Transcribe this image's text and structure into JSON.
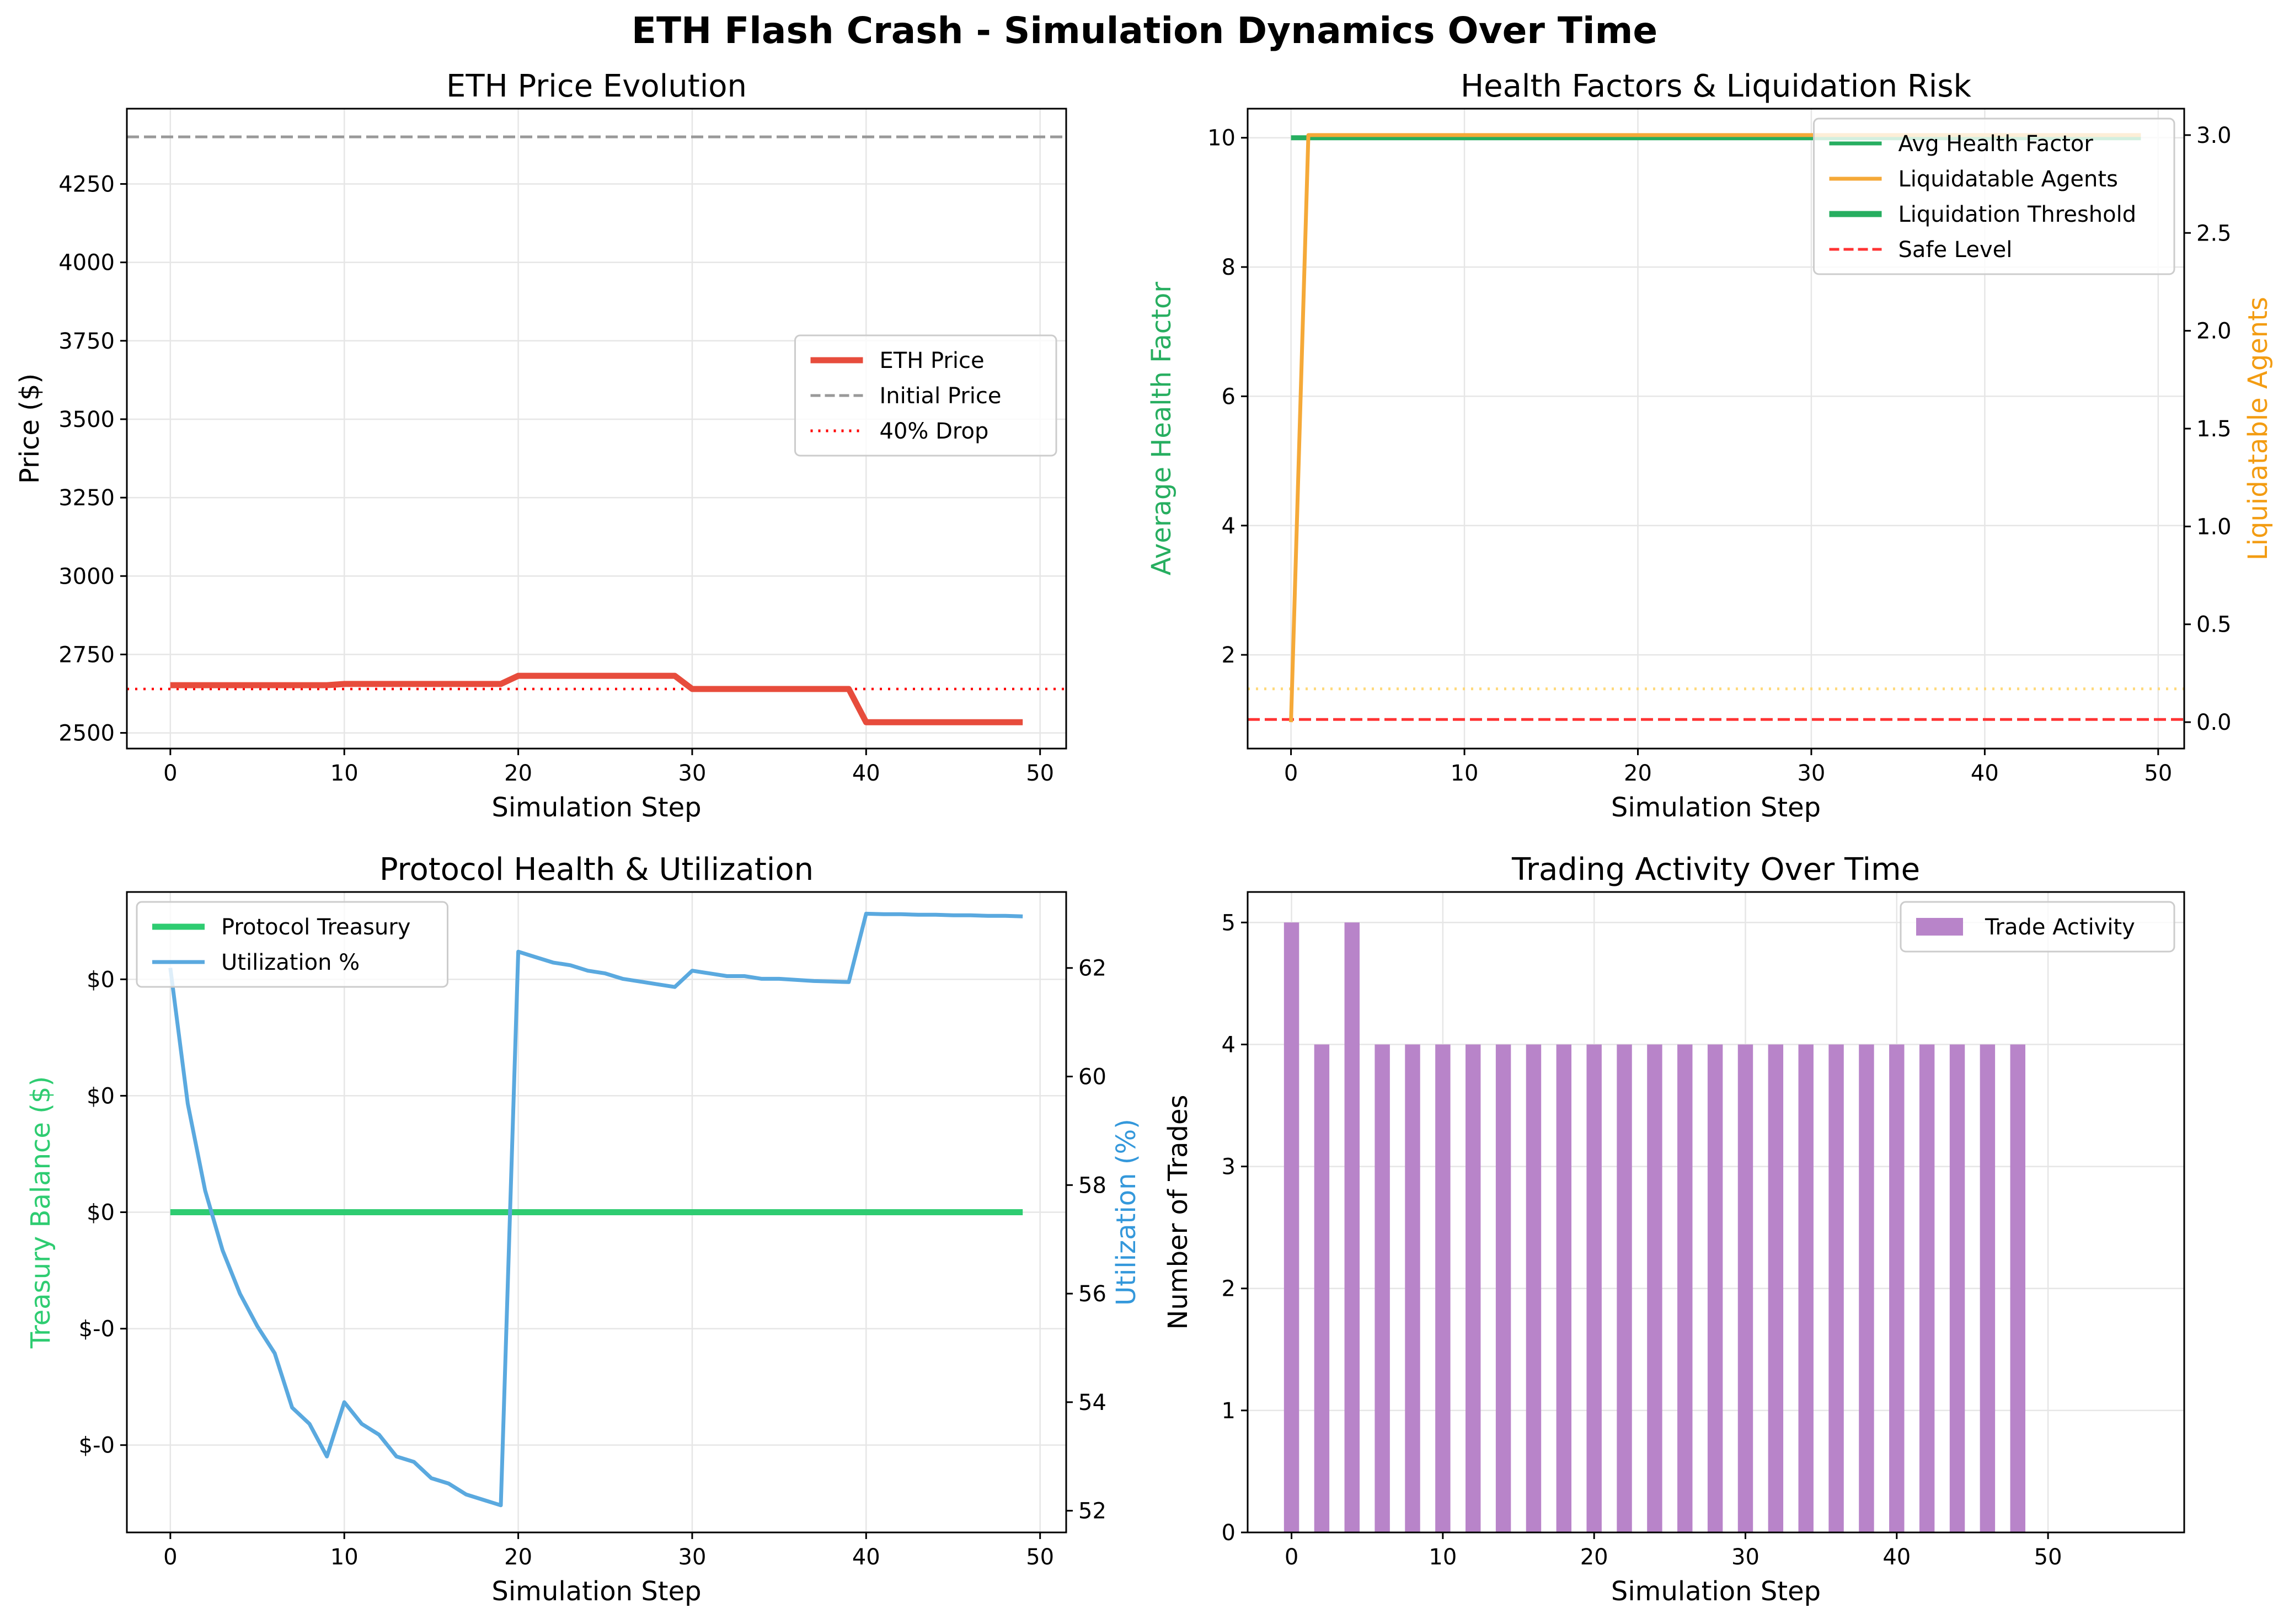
{
  "suptitle": "ETH Flash Crash - Simulation Dynamics Over Time",
  "colors": {
    "eth_price": "#e74c3c",
    "initial_price": "#999999",
    "drop": "#ff0000",
    "health": "#27ae60",
    "health_label": "#27ae60",
    "liquidatable": "#f5a938",
    "liq_label": "#f39c12",
    "safe": "#ff3333",
    "treasury": "#2ecc71",
    "treasury_label": "#2ecc71",
    "utilization": "#5aa9df",
    "util_label": "#3498db",
    "trades": "#b884c9",
    "grid": "#e6e6e6"
  },
  "chart_data": [
    {
      "id": "price",
      "type": "line",
      "title": "ETH Price Evolution",
      "xlabel": "Simulation Step",
      "ylabel": "Price ($)",
      "xlim": [
        -2.5,
        51.5
      ],
      "ylim": [
        2450,
        4490
      ],
      "xticks": [
        0,
        10,
        20,
        30,
        40,
        50
      ],
      "yticks": [
        2500,
        2750,
        3000,
        3250,
        3500,
        3750,
        4000,
        4250
      ],
      "ytick_labels": [
        "2500",
        "2750",
        "3000",
        "3250",
        "3500",
        "3750",
        "4000",
        "4250"
      ],
      "grid": true,
      "legend": {
        "position": "center-right",
        "entries": [
          "ETH Price",
          "Initial Price",
          "40% Drop"
        ]
      },
      "series": [
        {
          "name": "ETH Price",
          "style": "solid-thick",
          "x": [
            0,
            9,
            10,
            19,
            20,
            29,
            30,
            39,
            40,
            49
          ],
          "y": [
            2652,
            2652,
            2656,
            2656,
            2682,
            2682,
            2640,
            2640,
            2534,
            2534
          ]
        }
      ],
      "hlines": [
        {
          "name": "Initial Price",
          "y": 4400,
          "style": "dashed"
        },
        {
          "name": "40% Drop",
          "y": 2640,
          "style": "dotted"
        }
      ]
    },
    {
      "id": "health",
      "type": "line",
      "title": "Health Factors & Liquidation Risk",
      "xlabel": "Simulation Step",
      "ylabel": "Average Health Factor",
      "y2label": "Liquidatable Agents",
      "xlim": [
        -2.5,
        51.5
      ],
      "ylim": [
        0.55,
        10.45
      ],
      "y2lim": [
        -0.135,
        3.135
      ],
      "xticks": [
        0,
        10,
        20,
        30,
        40,
        50
      ],
      "yticks": [
        2,
        4,
        6,
        8,
        10
      ],
      "ytick_labels": [
        "2",
        "4",
        "6",
        "8",
        "10"
      ],
      "y2ticks": [
        0.0,
        0.5,
        1.0,
        1.5,
        2.0,
        2.5,
        3.0
      ],
      "y2tick_labels": [
        "0.0",
        "0.5",
        "1.0",
        "1.5",
        "2.0",
        "2.5",
        "3.0"
      ],
      "grid": true,
      "legend": {
        "position": "top-right",
        "entries": [
          "Avg Health Factor",
          "Liquidatable Agents",
          "Liquidation Threshold",
          "Safe Level"
        ]
      },
      "series": [
        {
          "name": "Avg Health Factor",
          "axis": "left",
          "x": [
            0,
            49
          ],
          "y": [
            10,
            10
          ]
        },
        {
          "name": "Liquidatable Agents",
          "axis": "right",
          "x": [
            0,
            1,
            49
          ],
          "y": [
            0,
            3,
            3
          ]
        }
      ],
      "hlines": [
        {
          "name": "Liquidation Threshold",
          "y": 1.0,
          "style": "dashed"
        },
        {
          "name": "Safe Level",
          "y": 1.5,
          "style": "dotted"
        }
      ]
    },
    {
      "id": "protocol",
      "type": "line",
      "title": "Protocol Health & Utilization",
      "xlabel": "Simulation Step",
      "ylabel": "Treasury Balance ($)",
      "y2label": "Utilization (%)",
      "xlim": [
        -2.5,
        51.5
      ],
      "ylim": [
        -0.055,
        0.055
      ],
      "y2lim": [
        51.6,
        63.4
      ],
      "xticks": [
        0,
        10,
        20,
        30,
        40,
        50
      ],
      "yticks": [
        -0.04,
        -0.02,
        0.0,
        0.02,
        0.04
      ],
      "ytick_labels": [
        "$-0",
        "$-0",
        "$0",
        "$0",
        "$0"
      ],
      "y2ticks": [
        52,
        54,
        56,
        58,
        60,
        62
      ],
      "y2tick_labels": [
        "52",
        "54",
        "56",
        "58",
        "60",
        "62"
      ],
      "grid": true,
      "legend": {
        "position": "top-left",
        "entries": [
          "Protocol Treasury",
          "Utilization %"
        ]
      },
      "series": [
        {
          "name": "Protocol Treasury",
          "axis": "left",
          "x": [
            0,
            49
          ],
          "y": [
            0,
            0
          ]
        },
        {
          "name": "Utilization %",
          "axis": "right",
          "x": [
            0,
            1,
            2,
            3,
            4,
            5,
            6,
            7,
            8,
            9,
            10,
            11,
            12,
            13,
            14,
            15,
            16,
            17,
            18,
            19,
            20,
            21,
            22,
            23,
            24,
            25,
            26,
            27,
            28,
            29,
            30,
            31,
            32,
            33,
            34,
            35,
            36,
            37,
            38,
            39,
            40,
            41,
            42,
            43,
            44,
            45,
            46,
            47,
            48,
            49
          ],
          "y": [
            62.0,
            59.5,
            57.9,
            56.8,
            56.0,
            55.4,
            54.9,
            53.9,
            53.6,
            53.0,
            54.0,
            53.6,
            53.4,
            53.0,
            52.9,
            52.6,
            52.5,
            52.3,
            52.2,
            52.1,
            62.3,
            62.2,
            62.1,
            62.05,
            61.95,
            61.9,
            61.8,
            61.75,
            61.7,
            61.65,
            61.95,
            61.9,
            61.85,
            61.85,
            61.8,
            61.8,
            61.78,
            61.76,
            61.75,
            61.74,
            63.0,
            62.99,
            62.99,
            62.98,
            62.98,
            62.97,
            62.97,
            62.96,
            62.96,
            62.95
          ]
        }
      ]
    },
    {
      "id": "trades",
      "type": "bar",
      "title": "Trading Activity Over Time",
      "xlabel": "Simulation Step",
      "ylabel": "Number of Trades",
      "xlim": [
        -2.9,
        59.0
      ],
      "ylim": [
        0,
        5.25
      ],
      "xticks": [
        0,
        10,
        20,
        30,
        40,
        50
      ],
      "yticks": [
        0,
        1,
        2,
        3,
        4,
        5
      ],
      "ytick_labels": [
        "0",
        "1",
        "2",
        "3",
        "4",
        "5"
      ],
      "grid": true,
      "legend": {
        "position": "top-right",
        "entries": [
          "Trade Activity"
        ]
      },
      "bar_width": 1.0,
      "series": [
        {
          "name": "Trade Activity",
          "x": [
            0,
            2,
            4,
            6,
            8,
            10,
            12,
            14,
            16,
            18,
            20,
            22,
            24,
            26,
            28,
            30,
            32,
            34,
            36,
            38,
            40,
            42,
            44,
            46,
            48
          ],
          "values": [
            5,
            4,
            5,
            4,
            4,
            4,
            4,
            4,
            4,
            4,
            4,
            4,
            4,
            4,
            4,
            4,
            4,
            4,
            4,
            4,
            4,
            4,
            4,
            4,
            4
          ]
        }
      ]
    }
  ]
}
